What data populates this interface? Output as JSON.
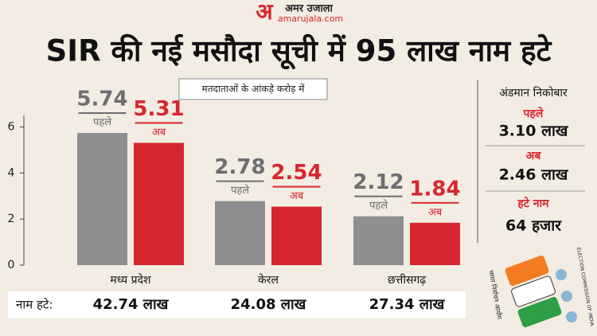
{
  "logo": {
    "letter": "अ",
    "name": "अमर उजाला",
    "site": "amarujala.com"
  },
  "chart_data": {
    "type": "bar",
    "title": "SIR की नई मसौदा सूची में 95 लाख नाम हटे",
    "subtitle": "मतदाताओं के आंकड़े करोड़ में",
    "categories": [
      "मध्य प्रदेश",
      "केरल",
      "छत्तीसगढ़"
    ],
    "series": [
      {
        "name": "पहले",
        "color": "#8d8e90",
        "values": [
          5.74,
          2.78,
          2.12
        ]
      },
      {
        "name": "अब",
        "color": "#d7262e",
        "values": [
          5.31,
          2.54,
          1.84
        ]
      }
    ],
    "ylim": [
      0,
      6.5
    ],
    "yticks": [
      0,
      2,
      4,
      6
    ],
    "removed_label": "नाम हटे:",
    "removed": [
      "42.74 लाख",
      "24.08 लाख",
      "27.34 लाख"
    ]
  },
  "side_panel": {
    "title": "अंडमान निकोबार",
    "items": [
      {
        "label": "पहले",
        "value": "3.10 लाख"
      },
      {
        "label": "अब",
        "value": "2.46 लाख"
      },
      {
        "label": "हटे नाम",
        "value": "64 हजार"
      }
    ]
  },
  "emblem": {
    "hindi": "भारत निर्वाचन आयोग",
    "english": "ELECTION COMMISSION OF INDIA"
  }
}
